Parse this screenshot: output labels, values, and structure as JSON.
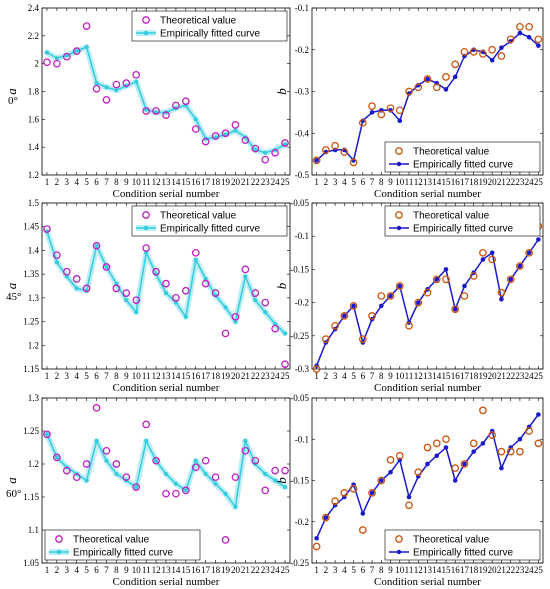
{
  "row_labels": [
    "0°",
    "45°",
    "60°"
  ],
  "colors": {
    "theoretical_a": "#c020c0",
    "fitted_a": "#33ccdd",
    "fitted_a_band": "#bdeef4",
    "theoretical_b": "#cc5511",
    "fitted_b": "#1a1acc"
  },
  "chart_data": [
    {
      "type": "line",
      "row_label": "0°",
      "xlabel": "Condition serial number",
      "ylabel": "a",
      "xlim": [
        0.5,
        25.5
      ],
      "ylim": [
        1.2,
        2.4
      ],
      "xticks": [
        1,
        2,
        3,
        4,
        5,
        6,
        7,
        8,
        9,
        10,
        11,
        12,
        13,
        14,
        15,
        16,
        17,
        18,
        19,
        20,
        21,
        22,
        23,
        24,
        25
      ],
      "yticks": [
        1.2,
        1.4,
        1.6,
        1.8,
        2.0,
        2.2,
        2.4
      ],
      "ytick_labels": [
        "1.2",
        "1.4",
        "1.6",
        "1.8",
        "2",
        "2.2",
        "2.4"
      ],
      "legend_position": "top-right",
      "x": [
        1,
        2,
        3,
        4,
        5,
        6,
        7,
        8,
        9,
        10,
        11,
        12,
        13,
        14,
        15,
        16,
        17,
        18,
        19,
        20,
        21,
        22,
        23,
        24,
        25
      ],
      "series": [
        {
          "name": "Theoretical value",
          "marker": "circle",
          "values": [
            2.01,
            2.0,
            2.05,
            2.09,
            2.27,
            1.82,
            1.74,
            1.85,
            1.86,
            1.92,
            1.66,
            1.66,
            1.63,
            1.7,
            1.73,
            1.53,
            1.44,
            1.48,
            1.5,
            1.56,
            1.45,
            1.39,
            1.31,
            1.36,
            1.43
          ]
        },
        {
          "name": "Empirically fitted curve",
          "marker": "dot-line",
          "values": [
            2.08,
            2.04,
            2.06,
            2.09,
            2.12,
            1.86,
            1.83,
            1.81,
            1.84,
            1.87,
            1.67,
            1.65,
            1.65,
            1.68,
            1.7,
            1.6,
            1.46,
            1.47,
            1.49,
            1.52,
            1.47,
            1.38,
            1.36,
            1.38,
            1.42
          ]
        }
      ]
    },
    {
      "type": "line",
      "row_label": "0°",
      "xlabel": "Condition serial number",
      "ylabel": "b",
      "xlim": [
        0.5,
        25.5
      ],
      "ylim": [
        -0.5,
        -0.1
      ],
      "xticks": [
        1,
        2,
        3,
        4,
        5,
        6,
        7,
        8,
        9,
        10,
        11,
        12,
        13,
        14,
        15,
        16,
        17,
        18,
        19,
        20,
        21,
        22,
        23,
        24,
        25
      ],
      "yticks": [
        -0.5,
        -0.4,
        -0.3,
        -0.2,
        -0.1
      ],
      "ytick_labels": [
        "-0.5",
        "-0.4",
        "-0.3",
        "-0.2",
        "-0.1"
      ],
      "legend_position": "bottom-right",
      "x": [
        1,
        2,
        3,
        4,
        5,
        6,
        7,
        8,
        9,
        10,
        11,
        12,
        13,
        14,
        15,
        16,
        17,
        18,
        19,
        20,
        21,
        22,
        23,
        24,
        25
      ],
      "series": [
        {
          "name": "Theoretical value",
          "marker": "circle",
          "values": [
            -0.465,
            -0.44,
            -0.43,
            -0.445,
            -0.47,
            -0.375,
            -0.335,
            -0.355,
            -0.34,
            -0.345,
            -0.3,
            -0.29,
            -0.27,
            -0.29,
            -0.265,
            -0.235,
            -0.205,
            -0.205,
            -0.21,
            -0.2,
            -0.215,
            -0.175,
            -0.145,
            -0.145,
            -0.175
          ]
        },
        {
          "name": "Empirically fitted curve",
          "marker": "dot-line",
          "values": [
            -0.465,
            -0.445,
            -0.44,
            -0.44,
            -0.465,
            -0.37,
            -0.35,
            -0.345,
            -0.345,
            -0.37,
            -0.305,
            -0.285,
            -0.27,
            -0.28,
            -0.295,
            -0.265,
            -0.215,
            -0.2,
            -0.205,
            -0.225,
            -0.195,
            -0.18,
            -0.16,
            -0.17,
            -0.19
          ]
        }
      ]
    },
    {
      "type": "line",
      "row_label": "45°",
      "xlabel": "Condition serial number",
      "ylabel": "a",
      "xlim": [
        0.5,
        25.5
      ],
      "ylim": [
        1.15,
        1.5
      ],
      "xticks": [
        1,
        2,
        3,
        4,
        5,
        6,
        7,
        8,
        9,
        10,
        11,
        12,
        13,
        14,
        15,
        16,
        17,
        18,
        19,
        20,
        21,
        22,
        23,
        24,
        25
      ],
      "yticks": [
        1.15,
        1.2,
        1.25,
        1.3,
        1.35,
        1.4,
        1.45,
        1.5
      ],
      "ytick_labels": [
        "1.15",
        "1.2",
        "1.25",
        "1.3",
        "1.35",
        "1.4",
        "1.45",
        "1.5"
      ],
      "legend_position": "top-right",
      "x": [
        1,
        2,
        3,
        4,
        5,
        6,
        7,
        8,
        9,
        10,
        11,
        12,
        13,
        14,
        15,
        16,
        17,
        18,
        19,
        20,
        21,
        22,
        23,
        24,
        25
      ],
      "series": [
        {
          "name": "Theoretical value",
          "marker": "circle",
          "values": [
            1.445,
            1.39,
            1.355,
            1.34,
            1.32,
            1.41,
            1.365,
            1.32,
            1.31,
            1.295,
            1.405,
            1.355,
            1.33,
            1.3,
            1.315,
            1.395,
            1.33,
            1.31,
            1.225,
            1.26,
            1.36,
            1.31,
            1.29,
            1.235,
            1.16
          ]
        },
        {
          "name": "Empirically fitted curve",
          "marker": "dot-line",
          "values": [
            1.44,
            1.375,
            1.345,
            1.32,
            1.315,
            1.41,
            1.365,
            1.33,
            1.295,
            1.27,
            1.395,
            1.35,
            1.31,
            1.29,
            1.26,
            1.38,
            1.34,
            1.305,
            1.28,
            1.25,
            1.345,
            1.295,
            1.27,
            1.245,
            1.225
          ]
        }
      ]
    },
    {
      "type": "line",
      "row_label": "45°",
      "xlabel": "Condition serial number",
      "ylabel": "b",
      "xlim": [
        0.5,
        25.5
      ],
      "ylim": [
        -0.3,
        -0.05
      ],
      "xticks": [
        1,
        2,
        3,
        4,
        5,
        6,
        7,
        8,
        9,
        10,
        11,
        12,
        13,
        14,
        15,
        16,
        17,
        18,
        19,
        20,
        21,
        22,
        23,
        24,
        25
      ],
      "yticks": [
        -0.3,
        -0.25,
        -0.2,
        -0.15,
        -0.1,
        -0.05
      ],
      "ytick_labels": [
        "-0.3",
        "-0.25",
        "-0.2",
        "-0.15",
        "-0.1",
        "-0.05"
      ],
      "legend_position": "top-right",
      "x": [
        1,
        2,
        3,
        4,
        5,
        6,
        7,
        8,
        9,
        10,
        11,
        12,
        13,
        14,
        15,
        16,
        17,
        18,
        19,
        20,
        21,
        22,
        23,
        24,
        25
      ],
      "series": [
        {
          "name": "Theoretical value",
          "marker": "circle",
          "values": [
            -0.3,
            -0.255,
            -0.235,
            -0.22,
            -0.205,
            -0.255,
            -0.22,
            -0.19,
            -0.19,
            -0.175,
            -0.235,
            -0.2,
            -0.185,
            -0.165,
            -0.165,
            -0.21,
            -0.19,
            -0.16,
            -0.125,
            -0.135,
            -0.185,
            -0.165,
            -0.145,
            -0.125,
            -0.085
          ]
        },
        {
          "name": "Empirically fitted curve",
          "marker": "dot-line",
          "values": [
            -0.295,
            -0.26,
            -0.24,
            -0.22,
            -0.205,
            -0.26,
            -0.225,
            -0.205,
            -0.19,
            -0.175,
            -0.23,
            -0.2,
            -0.18,
            -0.165,
            -0.15,
            -0.21,
            -0.175,
            -0.155,
            -0.135,
            -0.125,
            -0.195,
            -0.165,
            -0.145,
            -0.125,
            -0.105
          ]
        }
      ]
    },
    {
      "type": "line",
      "row_label": "60°",
      "xlabel": "Condition serial number",
      "ylabel": "a",
      "xlim": [
        0.5,
        25.5
      ],
      "ylim": [
        1.05,
        1.3
      ],
      "xticks": [
        1,
        2,
        3,
        4,
        5,
        6,
        7,
        8,
        9,
        10,
        11,
        12,
        13,
        14,
        15,
        16,
        17,
        18,
        19,
        20,
        21,
        22,
        23,
        24,
        25
      ],
      "yticks": [
        1.05,
        1.1,
        1.15,
        1.2,
        1.25,
        1.3
      ],
      "ytick_labels": [
        "1.05",
        "1.1",
        "1.15",
        "1.2",
        "1.25",
        "1.3"
      ],
      "legend_position": "bottom-left",
      "x": [
        1,
        2,
        3,
        4,
        5,
        6,
        7,
        8,
        9,
        10,
        11,
        12,
        13,
        14,
        15,
        16,
        17,
        18,
        19,
        20,
        21,
        22,
        23,
        24,
        25
      ],
      "series": [
        {
          "name": "Theoretical value",
          "marker": "circle",
          "values": [
            1.245,
            1.21,
            1.19,
            1.18,
            1.2,
            1.285,
            1.22,
            1.2,
            1.18,
            1.165,
            1.26,
            1.205,
            1.155,
            1.155,
            1.16,
            1.195,
            1.205,
            1.18,
            1.085,
            1.18,
            1.22,
            1.205,
            1.16,
            1.19,
            1.19
          ]
        },
        {
          "name": "Empirically fitted curve",
          "marker": "dot-line",
          "values": [
            1.245,
            1.21,
            1.195,
            1.185,
            1.175,
            1.235,
            1.205,
            1.185,
            1.175,
            1.165,
            1.235,
            1.205,
            1.185,
            1.17,
            1.16,
            1.205,
            1.185,
            1.17,
            1.155,
            1.135,
            1.235,
            1.2,
            1.185,
            1.175,
            1.165
          ]
        }
      ]
    },
    {
      "type": "line",
      "row_label": "60°",
      "xlabel": "Condition serial number",
      "ylabel": "b",
      "xlim": [
        0.5,
        25.5
      ],
      "ylim": [
        -0.25,
        -0.05
      ],
      "xticks": [
        1,
        2,
        3,
        4,
        5,
        6,
        7,
        8,
        9,
        10,
        11,
        12,
        13,
        14,
        15,
        16,
        17,
        18,
        19,
        20,
        21,
        22,
        23,
        24,
        25
      ],
      "yticks": [
        -0.25,
        -0.2,
        -0.15,
        -0.1,
        -0.05
      ],
      "ytick_labels": [
        "-0.25",
        "-0.2",
        "-0.15",
        "-0.1",
        "-0.05"
      ],
      "legend_position": "bottom-right",
      "x": [
        1,
        2,
        3,
        4,
        5,
        6,
        7,
        8,
        9,
        10,
        11,
        12,
        13,
        14,
        15,
        16,
        17,
        18,
        19,
        20,
        21,
        22,
        23,
        24,
        25
      ],
      "series": [
        {
          "name": "Theoretical value",
          "marker": "circle",
          "values": [
            -0.23,
            -0.195,
            -0.175,
            -0.165,
            -0.16,
            -0.21,
            -0.165,
            -0.15,
            -0.125,
            -0.12,
            -0.18,
            -0.14,
            -0.11,
            -0.105,
            -0.1,
            -0.135,
            -0.13,
            -0.105,
            -0.065,
            -0.095,
            -0.115,
            -0.115,
            -0.115,
            -0.09,
            -0.105
          ]
        },
        {
          "name": "Empirically fitted curve",
          "marker": "dot-line",
          "values": [
            -0.22,
            -0.195,
            -0.18,
            -0.17,
            -0.155,
            -0.19,
            -0.165,
            -0.15,
            -0.14,
            -0.125,
            -0.17,
            -0.145,
            -0.13,
            -0.12,
            -0.11,
            -0.15,
            -0.13,
            -0.115,
            -0.105,
            -0.09,
            -0.135,
            -0.11,
            -0.1,
            -0.085,
            -0.07
          ]
        }
      ]
    }
  ]
}
